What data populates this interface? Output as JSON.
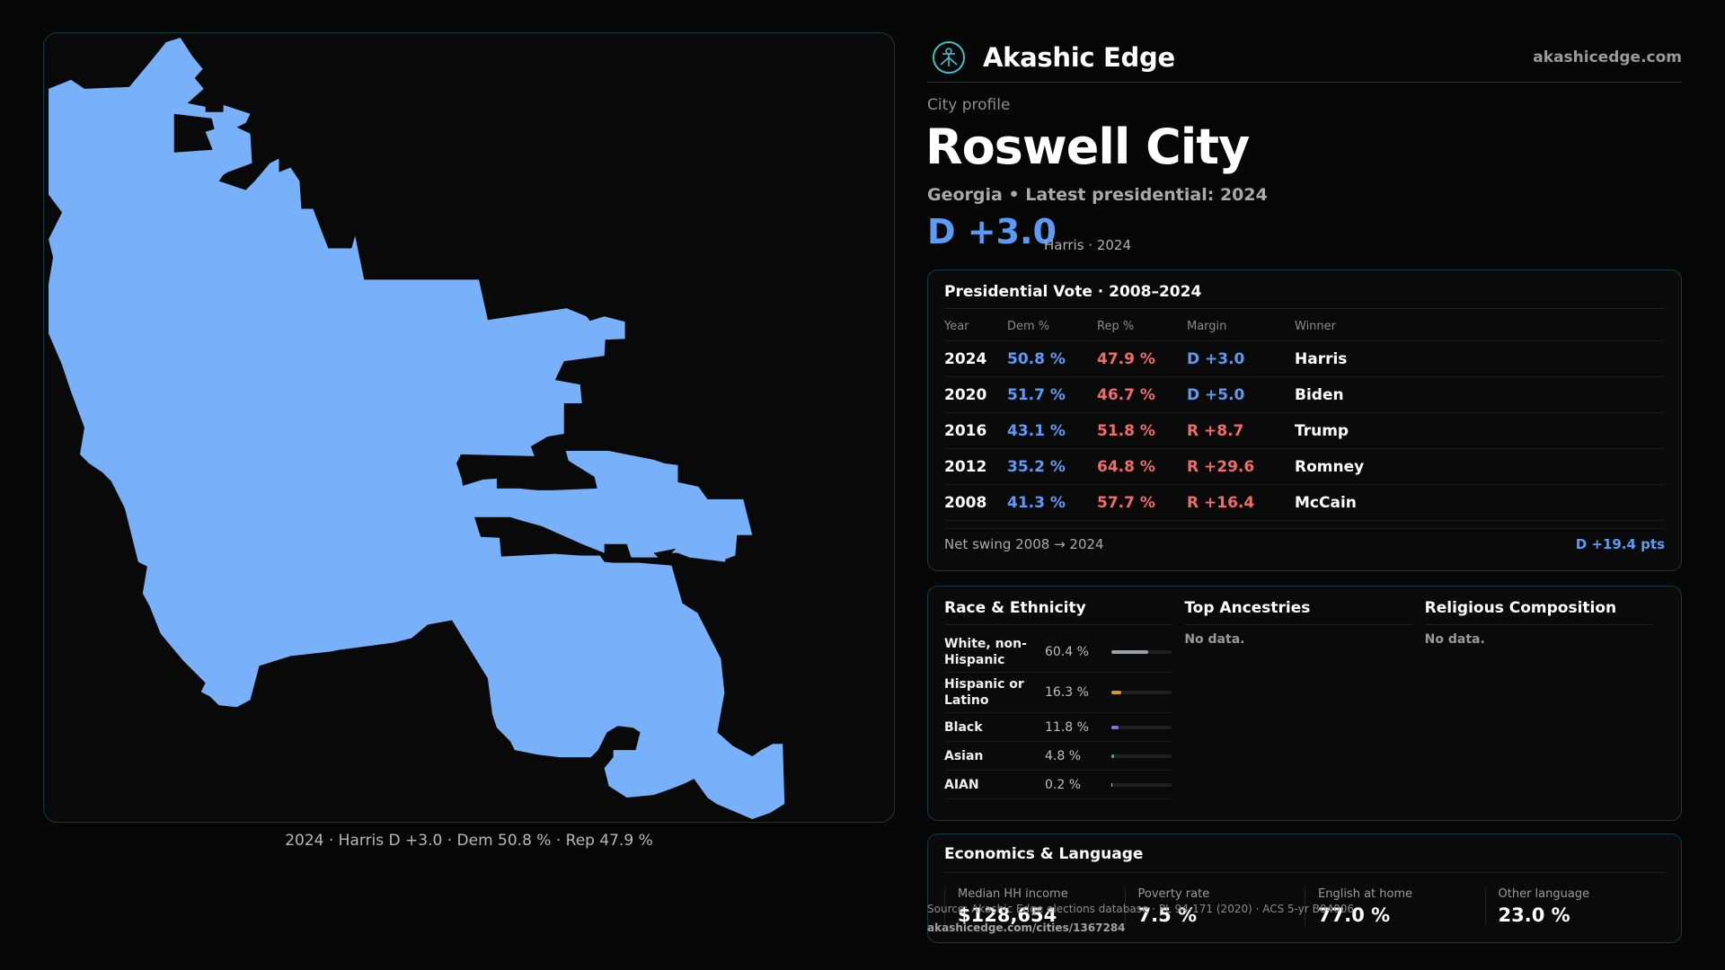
{
  "brand": {
    "name": "Akashic Edge",
    "domain": "akashicedge.com"
  },
  "profile": {
    "kicker": "City profile",
    "title": "Roswell City",
    "subtitle": "Georgia • Latest presidential: 2024",
    "margin": "D +3.0",
    "margin_note": "Harris · 2024"
  },
  "map": {
    "caption": "2024 · Harris D +3.0 · Dem 50.8 % · Rep 47.9  %",
    "fill_color": "#78b0fa"
  },
  "vote": {
    "title": "Presidential Vote · 2008–2024",
    "headers": [
      "Year",
      "Dem %",
      "Rep %",
      "Margin",
      "Winner"
    ],
    "rows": [
      {
        "year": "2024",
        "dem": "50.8 %",
        "rep": "47.9 %",
        "margin": "D +3.0",
        "winner": "Harris",
        "party": "D"
      },
      {
        "year": "2020",
        "dem": "51.7 %",
        "rep": "46.7 %",
        "margin": "D +5.0",
        "winner": "Biden",
        "party": "D"
      },
      {
        "year": "2016",
        "dem": "43.1 %",
        "rep": "51.8 %",
        "margin": "R +8.7",
        "winner": "Trump",
        "party": "R"
      },
      {
        "year": "2012",
        "dem": "35.2 %",
        "rep": "64.8 %",
        "margin": "R +29.6",
        "winner": "Romney",
        "party": "R"
      },
      {
        "year": "2008",
        "dem": "41.3 %",
        "rep": "57.7 %",
        "margin": "R +16.4",
        "winner": "McCain",
        "party": "R"
      }
    ],
    "swing_label": "Net swing 2008 → 2024",
    "swing_value": "D +19.4 pts"
  },
  "race": {
    "title": "Race & Ethnicity",
    "items": [
      {
        "label": "White, non-Hispanic",
        "pct": "60.4 %",
        "value": 60.4,
        "color": "#9aa0aa"
      },
      {
        "label": "Hispanic or Latino",
        "pct": "16.3 %",
        "value": 16.3,
        "color": "#e0952a"
      },
      {
        "label": "Black",
        "pct": "11.8 %",
        "value": 11.8,
        "color": "#8b6fe0"
      },
      {
        "label": "Asian",
        "pct": "4.8 %",
        "value": 4.8,
        "color": "#2fbf8f"
      },
      {
        "label": "AIAN",
        "pct": "0.2 %",
        "value": 0.2,
        "color": "#c0c0c0"
      }
    ]
  },
  "ancestries": {
    "title": "Top Ancestries",
    "text": "No data."
  },
  "religion": {
    "title": "Religious Composition",
    "text": "No data."
  },
  "econ": {
    "title": "Economics & Language",
    "items": [
      {
        "label": "Median HH income",
        "value": "$128,654"
      },
      {
        "label": "Poverty rate",
        "value": "7.5 %"
      },
      {
        "label": "English at home",
        "value": "77.0 %"
      },
      {
        "label": "Other language",
        "value": "23.0 %"
      }
    ]
  },
  "footer": {
    "source": "Source: Akashic Edge elections database · PL 94-171 (2020) · ACS 5-yr B04006",
    "url": "akashicedge.com/cities/1367284"
  }
}
